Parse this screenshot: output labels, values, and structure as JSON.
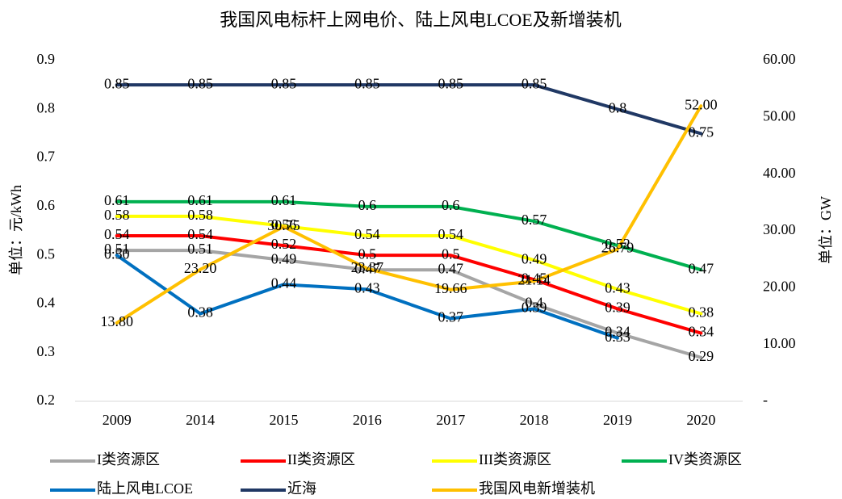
{
  "chart_data": {
    "type": "line",
    "title": "我国风电标杆上网电价、陆上风电LCOE及新增装机",
    "ylabel": "单位：元/kWh",
    "y2label": "单位：GW",
    "categories": [
      "2009",
      "2014",
      "2015",
      "2016",
      "2017",
      "2018",
      "2019",
      "2020"
    ],
    "ylim": [
      0.2,
      0.9
    ],
    "yticks": [
      0.2,
      0.3,
      0.4,
      0.5,
      0.6,
      0.7,
      0.8,
      0.9
    ],
    "y2lim": [
      0,
      60
    ],
    "y2ticks": [
      {
        "value": 0,
        "label": "-"
      },
      {
        "value": 10,
        "label": "10.00"
      },
      {
        "value": 20,
        "label": "20.00"
      },
      {
        "value": 30,
        "label": "30.00"
      },
      {
        "value": 40,
        "label": "40.00"
      },
      {
        "value": 50,
        "label": "50.00"
      },
      {
        "value": 60,
        "label": "60.00"
      }
    ],
    "legend": "bottom",
    "series": [
      {
        "name": "I类资源区",
        "color": "#a5a5a5",
        "values": [
          0.51,
          0.51,
          0.49,
          0.47,
          0.47,
          0.4,
          0.34,
          0.29
        ]
      },
      {
        "name": "II类资源区",
        "color": "#ff0000",
        "values": [
          0.54,
          0.54,
          0.52,
          0.5,
          0.5,
          0.45,
          0.39,
          0.34
        ]
      },
      {
        "name": "III类资源区",
        "color": "#ffff00",
        "values": [
          0.58,
          0.58,
          0.56,
          0.54,
          0.54,
          0.49,
          0.43,
          0.38
        ]
      },
      {
        "name": "IV类资源区",
        "color": "#00b050",
        "values": [
          0.61,
          0.61,
          0.61,
          0.6,
          0.6,
          0.57,
          0.52,
          0.47
        ]
      },
      {
        "name": "陆上风电LCOE",
        "color": "#0070c0",
        "values": [
          0.5,
          0.38,
          0.44,
          0.43,
          0.37,
          0.39,
          0.33,
          null
        ],
        "value_labels": [
          "0.50",
          "0.38",
          "0.44",
          "0.43",
          "0.37",
          "0.39",
          "0.33",
          null
        ]
      },
      {
        "name": "近海",
        "color": "#203864",
        "values": [
          0.85,
          0.85,
          0.85,
          0.85,
          0.85,
          0.85,
          0.8,
          0.75
        ]
      },
      {
        "name": "我国风电新增装机",
        "color": "#ffc000",
        "axis": "y2",
        "values": [
          13.8,
          23.2,
          30.75,
          23.37,
          19.66,
          21.14,
          26.79,
          52.0
        ],
        "value_labels": [
          "13.80",
          "23.20",
          "30.75",
          "23.37",
          "19.66",
          "21.14",
          "26.79",
          "52.00"
        ]
      }
    ]
  }
}
